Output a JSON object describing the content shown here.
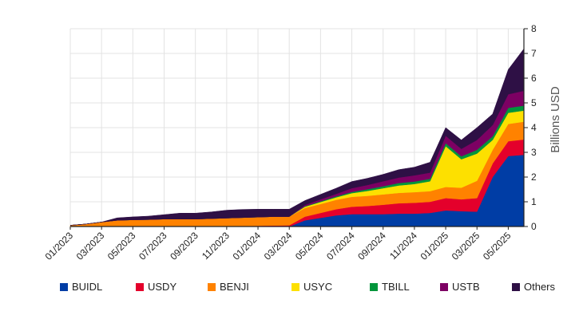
{
  "chart_data": {
    "type": "area",
    "stacked": true,
    "x": [
      "01/2023",
      "02/2023",
      "03/2023",
      "04/2023",
      "05/2023",
      "06/2023",
      "07/2023",
      "08/2023",
      "09/2023",
      "10/2023",
      "11/2023",
      "12/2023",
      "01/2024",
      "02/2024",
      "03/2024",
      "04/2024",
      "05/2024",
      "06/2024",
      "07/2024",
      "08/2024",
      "09/2024",
      "10/2024",
      "11/2024",
      "12/2024",
      "01/2025",
      "02/2025",
      "03/2025",
      "04/2025",
      "05/2025",
      "06/2025"
    ],
    "xticks": [
      "01/2023",
      "03/2023",
      "05/2023",
      "07/2023",
      "09/2023",
      "11/2023",
      "01/2024",
      "03/2024",
      "05/2024",
      "07/2024",
      "09/2024",
      "11/2024",
      "01/2025",
      "03/2025",
      "05/2025"
    ],
    "ylabel": "Billions USD",
    "ylim": [
      0,
      8
    ],
    "yticks": [
      0,
      1,
      2,
      3,
      4,
      5,
      6,
      7,
      8
    ],
    "y_axis_side": "right",
    "grid": true,
    "legend_position": "bottom",
    "series": [
      {
        "name": "BUIDL",
        "color": "#003da5",
        "values": [
          0,
          0,
          0,
          0,
          0,
          0,
          0,
          0,
          0,
          0,
          0,
          0,
          0,
          0,
          0,
          0.25,
          0.35,
          0.45,
          0.5,
          0.5,
          0.5,
          0.52,
          0.52,
          0.55,
          0.65,
          0.62,
          0.6,
          2.0,
          2.85,
          2.9
        ]
      },
      {
        "name": "USDY",
        "color": "#e4002b",
        "values": [
          0,
          0,
          0,
          0,
          0,
          0,
          0,
          0,
          0,
          0,
          0.01,
          0.02,
          0.03,
          0.04,
          0.05,
          0.15,
          0.2,
          0.25,
          0.3,
          0.33,
          0.38,
          0.42,
          0.44,
          0.45,
          0.5,
          0.48,
          0.55,
          0.55,
          0.6,
          0.62
        ]
      },
      {
        "name": "BENJI",
        "color": "#ff8200",
        "values": [
          0.05,
          0.1,
          0.18,
          0.25,
          0.27,
          0.28,
          0.3,
          0.3,
          0.3,
          0.32,
          0.33,
          0.34,
          0.35,
          0.36,
          0.35,
          0.35,
          0.36,
          0.38,
          0.4,
          0.41,
          0.42,
          0.42,
          0.43,
          0.43,
          0.45,
          0.47,
          0.7,
          0.55,
          0.7,
          0.72
        ]
      },
      {
        "name": "USYC",
        "color": "#fde000",
        "values": [
          0,
          0,
          0,
          0,
          0,
          0,
          0,
          0,
          0,
          0,
          0,
          0,
          0,
          0,
          0,
          0.05,
          0.08,
          0.1,
          0.15,
          0.2,
          0.25,
          0.3,
          0.33,
          0.4,
          1.65,
          1.15,
          1.1,
          0.4,
          0.45,
          0.45
        ]
      },
      {
        "name": "TBILL",
        "color": "#00953b",
        "values": [
          0,
          0,
          0,
          0,
          0,
          0,
          0,
          0,
          0,
          0,
          0,
          0,
          0,
          0,
          0,
          0.02,
          0.03,
          0.04,
          0.05,
          0.07,
          0.08,
          0.1,
          0.1,
          0.1,
          0.12,
          0.12,
          0.15,
          0.15,
          0.2,
          0.2
        ]
      },
      {
        "name": "USTB",
        "color": "#7d0063",
        "values": [
          0,
          0,
          0,
          0,
          0,
          0,
          0,
          0,
          0,
          0,
          0,
          0,
          0,
          0,
          0,
          0.05,
          0.08,
          0.1,
          0.15,
          0.17,
          0.2,
          0.22,
          0.25,
          0.25,
          0.3,
          0.3,
          0.4,
          0.45,
          0.55,
          0.6
        ]
      },
      {
        "name": "Others",
        "color": "#2e1045",
        "values": [
          0,
          0,
          0,
          0.1,
          0.12,
          0.14,
          0.18,
          0.24,
          0.24,
          0.27,
          0.32,
          0.33,
          0.32,
          0.3,
          0.3,
          0.18,
          0.2,
          0.23,
          0.27,
          0.27,
          0.28,
          0.32,
          0.33,
          0.42,
          0.33,
          0.36,
          0.5,
          0.45,
          1.0,
          1.7
        ]
      }
    ]
  }
}
